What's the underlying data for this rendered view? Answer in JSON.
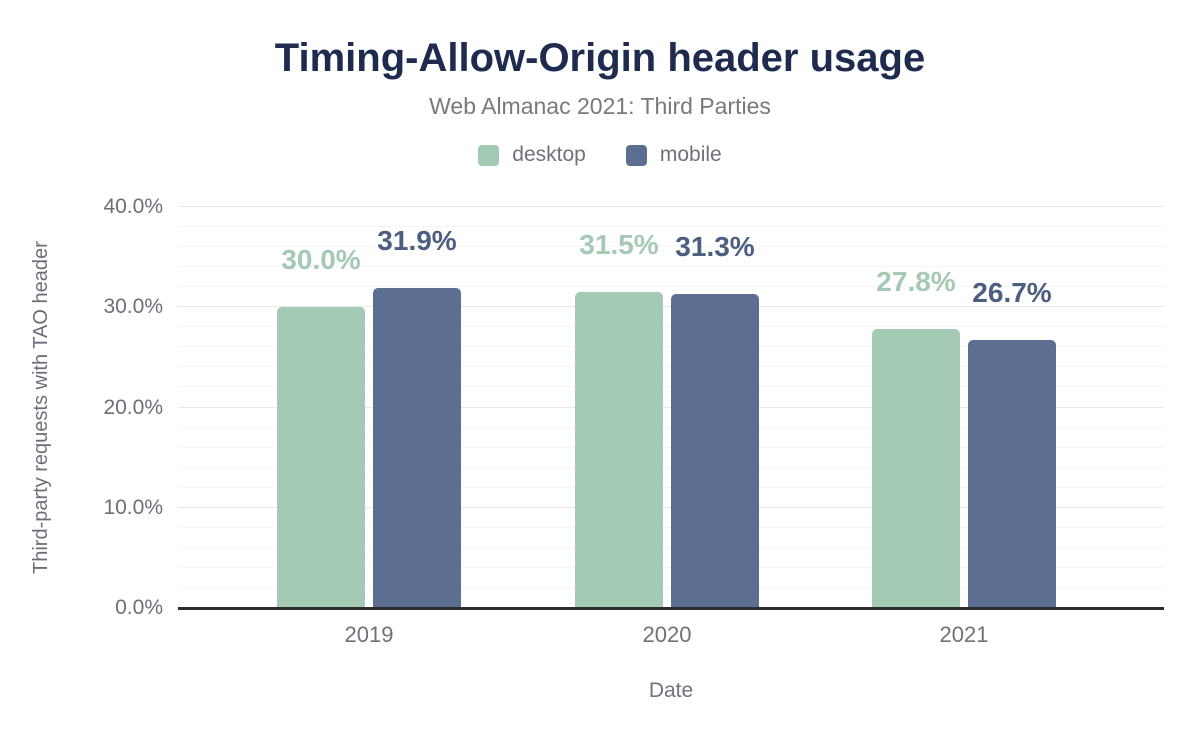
{
  "chart": {
    "title": "Timing-Allow-Origin header usage",
    "subtitle": "Web Almanac 2021: Third Parties",
    "xlabel": "Date",
    "ylabel": "Third-party requests with TAO header"
  },
  "chart_data": {
    "type": "bar",
    "title": "Timing-Allow-Origin header usage",
    "subtitle": "Web Almanac 2021: Third Parties",
    "categories": [
      "2019",
      "2020",
      "2021"
    ],
    "series": [
      {
        "name": "desktop",
        "color": "#a4c9b5",
        "label_color": "#a4c9b5",
        "values": [
          30.0,
          31.5,
          27.8
        ],
        "labels": [
          "30.0%",
          "31.5%",
          "27.8%"
        ]
      },
      {
        "name": "mobile",
        "color": "#5d6f90",
        "label_color": "#4d5f80",
        "values": [
          31.9,
          31.3,
          26.7
        ],
        "labels": [
          "31.9%",
          "31.3%",
          "26.7%"
        ]
      }
    ],
    "xlabel": "Date",
    "ylabel": "Third-party requests with TAO header",
    "ylim": [
      0,
      40
    ],
    "yticks": [
      "0.0%",
      "10.0%",
      "20.0%",
      "30.0%",
      "40.0%"
    ],
    "grid": "horizontal; minor every 2%, major every 10%",
    "legend_position": "top-center",
    "colors": {
      "title": "#1e2a4e",
      "subtitle_text": "#77797e",
      "axis_text": "#6b6f78",
      "baseline": "#2d2d2d",
      "gridline_minor": "#f5f5f5",
      "gridline_major": "#e8e8e8",
      "background": "#ffffff"
    }
  }
}
